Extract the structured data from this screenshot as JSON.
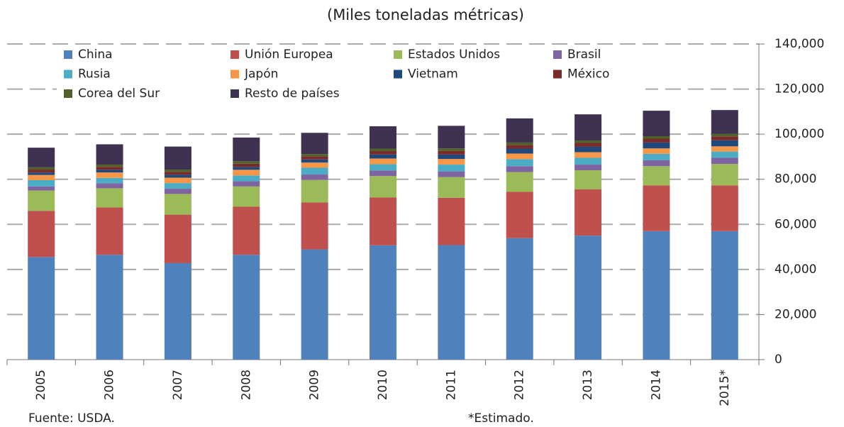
{
  "chart_data": {
    "type": "stacked_bar",
    "title": "(Miles toneladas métricas)",
    "categories": [
      "2005",
      "2006",
      "2007",
      "2008",
      "2009",
      "2010",
      "2011",
      "2012",
      "2013",
      "2014",
      "2015*"
    ],
    "series": [
      {
        "name": "China",
        "color": "#4f81bd",
        "values": [
          45500,
          46500,
          42800,
          46500,
          48900,
          50700,
          50800,
          53900,
          55000,
          57000,
          57000
        ]
      },
      {
        "name": "Unión Europea",
        "color": "#c0504d",
        "values": [
          20500,
          21000,
          21500,
          21300,
          20800,
          21200,
          21000,
          20500,
          20500,
          20300,
          20300
        ]
      },
      {
        "name": "Estados Unidos",
        "color": "#9bbb59",
        "values": [
          9000,
          8500,
          9200,
          9000,
          10000,
          9500,
          9200,
          8800,
          8500,
          8500,
          9500
        ]
      },
      {
        "name": "Brasil",
        "color": "#8064a2",
        "values": [
          1800,
          2200,
          2300,
          2300,
          2400,
          2500,
          2500,
          2600,
          2500,
          2700,
          2700
        ]
      },
      {
        "name": "Rusia",
        "color": "#4bacc6",
        "values": [
          2800,
          2400,
          2500,
          2600,
          3000,
          2800,
          3000,
          3100,
          3000,
          2800,
          2800
        ]
      },
      {
        "name": "Japón",
        "color": "#f79646",
        "values": [
          2300,
          2400,
          2400,
          2500,
          2300,
          2500,
          2500,
          2500,
          2500,
          2400,
          2300
        ]
      },
      {
        "name": "Vietnam",
        "color": "#1f497d",
        "values": [
          1100,
          1200,
          1300,
          1300,
          1400,
          1800,
          2000,
          2200,
          2400,
          2600,
          2700
        ]
      },
      {
        "name": "México",
        "color": "#7b2a2a",
        "values": [
          1300,
          1300,
          1300,
          1400,
          1400,
          1500,
          1600,
          1600,
          1700,
          1700,
          1700
        ]
      },
      {
        "name": "Corea del Sur",
        "color": "#4f6228",
        "values": [
          1000,
          1000,
          1000,
          1100,
          1000,
          1100,
          1100,
          1100,
          1100,
          1100,
          1100
        ]
      },
      {
        "name": "Resto de países",
        "color": "#3f3151",
        "values": [
          8700,
          9000,
          10200,
          10500,
          9400,
          9900,
          10000,
          10700,
          11600,
          11300,
          10600
        ]
      }
    ],
    "ylim": [
      0,
      140000
    ],
    "yticks": [
      0,
      {
        "value": 20000,
        "label": "20,000"
      },
      {
        "value": 40000,
        "label": "40,000"
      },
      {
        "value": 60000,
        "label": "60,000"
      },
      {
        "value": 80000,
        "label": "80,000"
      },
      {
        "value": 100000,
        "label": "100,000"
      },
      {
        "value": 120000,
        "label": "120,000"
      },
      {
        "value": 140000,
        "label": "140,000"
      }
    ],
    "grid": true,
    "source": "Fuente: USDA.",
    "note": "*Estimado."
  }
}
